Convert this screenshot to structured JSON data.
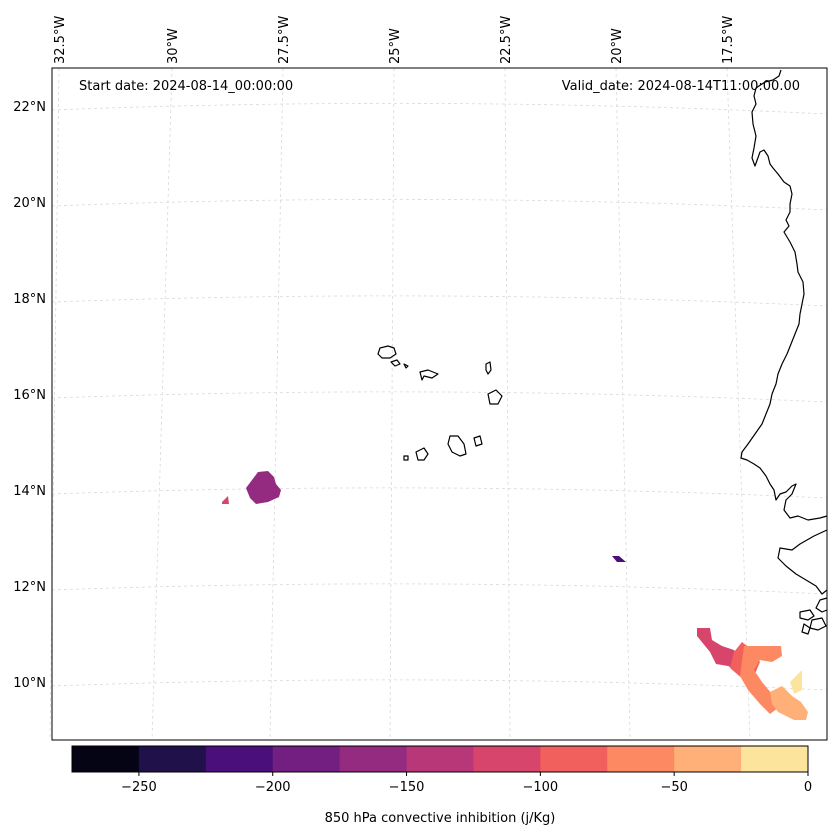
{
  "map": {
    "start_date": "Start date: 2024-08-14_00:00:00",
    "valid_date": "Valid_date: 2024-08-14T11:00:00.00",
    "lon_labels": [
      "32.5°W",
      "30°W",
      "27.5°W",
      "25°W",
      "22.5°W",
      "20°W",
      "17.5°W"
    ],
    "lat_labels": [
      "22°N",
      "20°N",
      "18°N",
      "16°N",
      "14°N",
      "12°N",
      "10°N"
    ]
  },
  "colorbar": {
    "label": "850 hPa convective inhibition (j/Kg)",
    "ticks": [
      "−250",
      "−200",
      "−150",
      "−100",
      "−50",
      "0"
    ],
    "tick_values": [
      -250,
      -200,
      -150,
      -100,
      -50,
      0
    ],
    "min": -275,
    "max": 0,
    "colors": [
      "#050415",
      "#21114b",
      "#4b0f7b",
      "#721f81",
      "#942b80",
      "#b73779",
      "#d8456c",
      "#f1605d",
      "#fc8961",
      "#feb078",
      "#fde49c"
    ]
  },
  "colors": {
    "coastline": "#000000",
    "gridline": "#d9d9d9"
  }
}
